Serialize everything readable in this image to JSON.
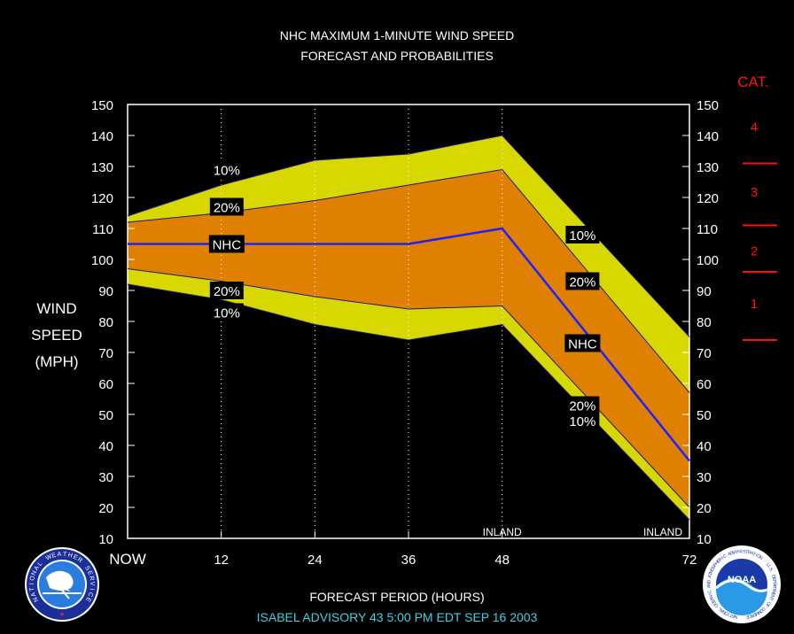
{
  "header": {
    "title_line1": "NHC MAXIMUM 1-MINUTE WIND SPEED",
    "title_line2": "FORECAST AND PROBABILITIES"
  },
  "chart_data": {
    "type": "area",
    "title": "NHC MAXIMUM 1-MINUTE WIND SPEED FORECAST AND PROBABILITIES",
    "xlabel": "FORECAST PERIOD (HOURS)",
    "ylabel": [
      "WIND",
      "SPEED",
      "(MPH)"
    ],
    "x_ticks": [
      {
        "x": 0,
        "label": "NOW"
      },
      {
        "x": 12,
        "label": "12"
      },
      {
        "x": 24,
        "label": "24"
      },
      {
        "x": 36,
        "label": "36"
      },
      {
        "x": 48,
        "label": "48"
      },
      {
        "x": 72,
        "label": "72"
      }
    ],
    "xlim": [
      0,
      72
    ],
    "ylim": [
      10,
      150
    ],
    "y_ticks": [
      10,
      20,
      30,
      40,
      50,
      60,
      70,
      80,
      90,
      100,
      110,
      120,
      130,
      140,
      150
    ],
    "dotted_vlines": [
      12,
      24,
      36,
      48
    ],
    "x": [
      0,
      12,
      24,
      36,
      48,
      72
    ],
    "series": [
      {
        "name": "10%",
        "values": [
          114,
          124,
          132,
          134,
          140,
          75
        ],
        "role": "upper_10",
        "color": "#d8d800"
      },
      {
        "name": "20%",
        "values": [
          112,
          115,
          119,
          124,
          129,
          57
        ],
        "role": "upper_20",
        "color": "#e08000"
      },
      {
        "name": "NHC",
        "values": [
          105,
          105,
          105,
          105,
          110,
          35
        ],
        "role": "forecast",
        "color": "#2020ff"
      },
      {
        "name": "20%",
        "values": [
          97,
          93,
          88,
          84,
          85,
          20
        ],
        "role": "lower_20",
        "color": "#e08000"
      },
      {
        "name": "10%",
        "values": [
          92,
          87,
          79,
          74,
          79,
          16
        ],
        "role": "lower_10",
        "color": "#d8d800"
      }
    ],
    "curve_labels_left": [
      {
        "text": "10%",
        "x": 12.7,
        "y": 129
      },
      {
        "text": "20%",
        "x": 12.7,
        "y": 117
      },
      {
        "text": "NHC",
        "x": 12.7,
        "y": 105
      },
      {
        "text": "20%",
        "x": 12.7,
        "y": 90
      },
      {
        "text": "10%",
        "x": 12.7,
        "y": 83
      }
    ],
    "curve_labels_right": [
      {
        "text": "10%",
        "x": 58.3,
        "y": 108
      },
      {
        "text": "20%",
        "x": 58.3,
        "y": 93
      },
      {
        "text": "NHC",
        "x": 58.3,
        "y": 73
      },
      {
        "text": "20%",
        "x": 58.3,
        "y": 53
      },
      {
        "text": "10%",
        "x": 58.3,
        "y": 48
      }
    ],
    "annotations": [
      {
        "text": "INLAND",
        "x": 48
      },
      {
        "text": "INLAND",
        "x": 72
      }
    ],
    "category_scale": {
      "title": "CAT.",
      "labels": [
        {
          "text": "4",
          "y": 143
        },
        {
          "text": "3",
          "y": 122
        },
        {
          "text": "2",
          "y": 103
        },
        {
          "text": "1",
          "y": 86
        }
      ],
      "boundaries": [
        131,
        111,
        96,
        74
      ],
      "color": "#ff1010"
    },
    "colors": {
      "band10": "#d8d800",
      "band20": "#e08000",
      "nhc": "#2020ff",
      "frame": "#ffffff",
      "plot_bg": "#000000"
    }
  },
  "footer": {
    "advisory": "ISABEL   ADVISORY  43 5:00  PM  EDT  SEP  16  2003",
    "advisory_color": "#40d0e0"
  },
  "logos": {
    "left": {
      "name": "national-weather-service-logo",
      "ring_text": "NATIONAL WEATHER SERVICE"
    },
    "right": {
      "name": "noaa-logo",
      "center_text": "NOAA",
      "ring_text": "NATIONAL OCEANIC AND ATMOSPHERIC ADMINISTRATION · U.S. DEPARTMENT OF COMMERCE"
    }
  }
}
